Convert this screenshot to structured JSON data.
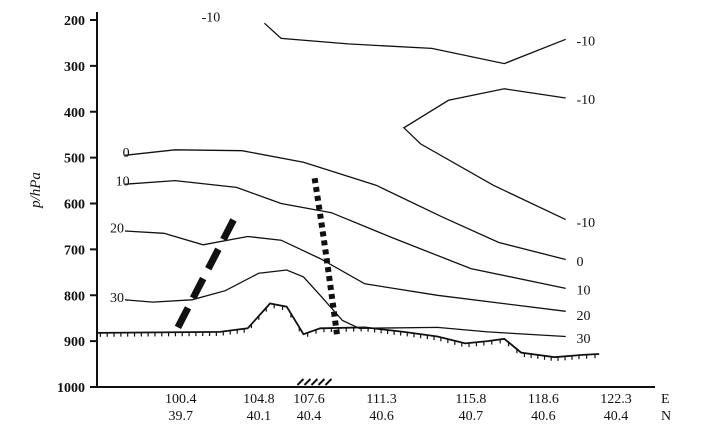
{
  "chart_data": {
    "type": "line",
    "title": "",
    "ylabel": "p/hPa",
    "yticks": [
      "200",
      "300",
      "400",
      "500",
      "600",
      "700",
      "800",
      "900",
      "1000"
    ],
    "ylim": [
      180,
      1000
    ],
    "y_inverted": true,
    "x_units": {
      "lon": "E",
      "lat": "N"
    },
    "x_stations": [
      {
        "lon": "100.4",
        "lat": "39.7"
      },
      {
        "lon": "104.8",
        "lat": "40.1"
      },
      {
        "lon": "107.6",
        "lat": "40.4"
      },
      {
        "lon": "111.3",
        "lat": "40.6"
      },
      {
        "lon": "115.8",
        "lat": "40.7"
      },
      {
        "lon": "118.6",
        "lat": "40.6"
      },
      {
        "lon": "122.3",
        "lat": "40.4"
      }
    ],
    "contour_labels": {
      "left": [
        "-10",
        "0",
        "10",
        "20",
        "30"
      ],
      "right": [
        "-10",
        "-10",
        "-10",
        "0",
        "10",
        "20",
        "30"
      ]
    },
    "series": [
      {
        "level": "-10",
        "points": [
          [
            0.3,
            207
          ],
          [
            0.33,
            240
          ],
          [
            0.45,
            252
          ],
          [
            0.6,
            262
          ],
          [
            0.73,
            295
          ],
          [
            0.84,
            242
          ]
        ]
      },
      {
        "level": "-10",
        "points": [
          [
            0.84,
            370
          ],
          [
            0.73,
            350
          ],
          [
            0.63,
            375
          ],
          [
            0.55,
            435
          ],
          [
            0.58,
            470
          ],
          [
            0.71,
            560
          ],
          [
            0.84,
            635
          ]
        ]
      },
      {
        "level": "0",
        "points": [
          [
            0.05,
            495
          ],
          [
            0.14,
            483
          ],
          [
            0.26,
            485
          ],
          [
            0.37,
            510
          ],
          [
            0.5,
            560
          ],
          [
            0.62,
            630
          ],
          [
            0.72,
            685
          ],
          [
            0.84,
            722
          ]
        ]
      },
      {
        "level": "10",
        "points": [
          [
            0.05,
            558
          ],
          [
            0.14,
            550
          ],
          [
            0.25,
            565
          ],
          [
            0.33,
            600
          ],
          [
            0.42,
            620
          ],
          [
            0.53,
            675
          ],
          [
            0.67,
            742
          ],
          [
            0.84,
            785
          ]
        ]
      },
      {
        "level": "20",
        "points": [
          [
            0.05,
            660
          ],
          [
            0.12,
            665
          ],
          [
            0.19,
            690
          ],
          [
            0.27,
            672
          ],
          [
            0.33,
            680
          ],
          [
            0.4,
            720
          ],
          [
            0.48,
            775
          ],
          [
            0.61,
            800
          ],
          [
            0.84,
            835
          ]
        ]
      },
      {
        "level": "30",
        "points": [
          [
            0.05,
            810
          ],
          [
            0.1,
            815
          ],
          [
            0.17,
            810
          ],
          [
            0.23,
            790
          ],
          [
            0.29,
            752
          ],
          [
            0.34,
            745
          ],
          [
            0.37,
            760
          ],
          [
            0.4,
            800
          ],
          [
            0.44,
            855
          ],
          [
            0.47,
            872
          ],
          [
            0.61,
            870
          ],
          [
            0.7,
            880
          ],
          [
            0.84,
            890
          ]
        ]
      }
    ],
    "terrain_pressure": [
      [
        0.0,
        882
      ],
      [
        0.22,
        880
      ],
      [
        0.27,
        872
      ],
      [
        0.31,
        818
      ],
      [
        0.34,
        825
      ],
      [
        0.37,
        885
      ],
      [
        0.4,
        872
      ],
      [
        0.48,
        870
      ],
      [
        0.55,
        880
      ],
      [
        0.61,
        890
      ],
      [
        0.66,
        905
      ],
      [
        0.7,
        900
      ],
      [
        0.73,
        895
      ],
      [
        0.76,
        925
      ],
      [
        0.82,
        935
      ],
      [
        0.87,
        930
      ],
      [
        0.9,
        928
      ]
    ],
    "grid": false,
    "legend": "none"
  }
}
